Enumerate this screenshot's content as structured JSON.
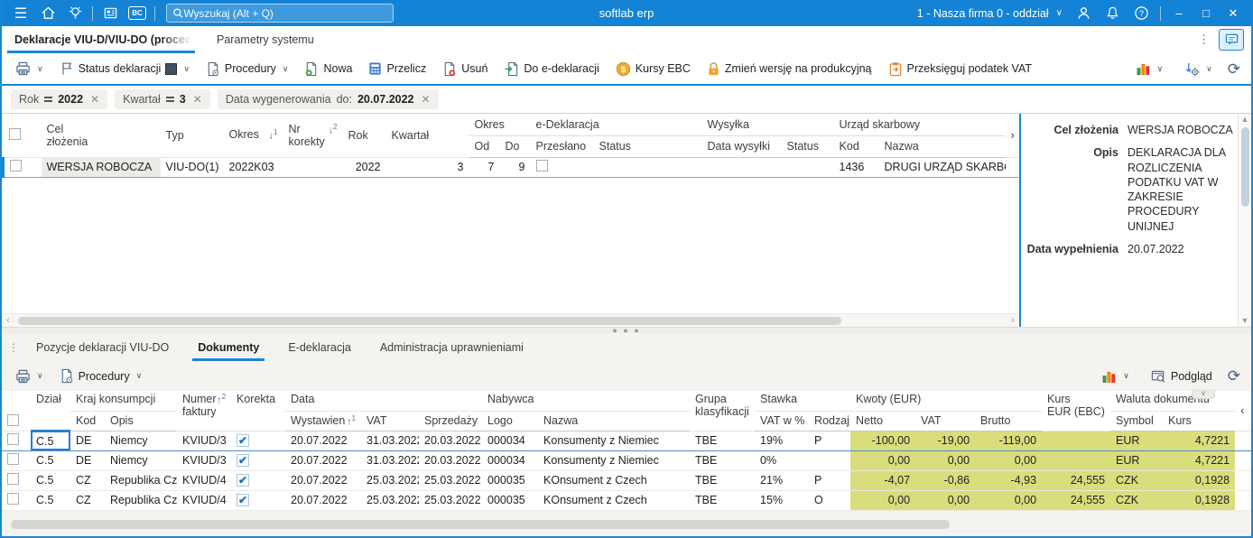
{
  "topbar": {
    "search_placeholder": "Wyszukaj (Alt + Q)",
    "app_title": "softlab erp",
    "company_selector": "1 - Nasza firma 0 - oddział",
    "bc_label": "BC"
  },
  "main_tabs": [
    {
      "label": "Deklaracje VIU-D/VIU-DO (procedura u",
      "active": true
    },
    {
      "label": "Parametry systemu",
      "active": false
    }
  ],
  "toolbar": {
    "status_deklaracji": "Status deklaracji",
    "procedury": "Procedury",
    "nowa": "Nowa",
    "przelicz": "Przelicz",
    "usun": "Usuń",
    "do_edeklaracji": "Do e-deklaracji",
    "kursy_ebc": "Kursy EBC",
    "zmien_wersje": "Zmień wersję na produkcyjną",
    "przeksieguj": "Przeksięguj podatek VAT"
  },
  "filters": [
    {
      "label": "Rok",
      "op": "=",
      "value": "2022"
    },
    {
      "label": "Kwartał",
      "op": "=",
      "value": "3"
    },
    {
      "label": "Data wygenerowania",
      "op": "do:",
      "value": "20.07.2022"
    }
  ],
  "upper_grid": {
    "headers": {
      "cel": "Cel",
      "zlozenia": "złożenia",
      "typ": "Typ",
      "okres": "Okres",
      "nr": "Nr",
      "korekty": "korekty",
      "rok": "Rok",
      "kwartal": "Kwartał",
      "okres_group": "Okres",
      "od": "Od",
      "do": "Do",
      "edeklaracja": "e-Deklaracja",
      "przeslano": "Przesłano",
      "status_e": "Status",
      "wysylka": "Wysyłka",
      "data_wysylki": "Data wysyłki",
      "status_w": "Status",
      "urzad": "Urząd skarbowy",
      "kod": "Kod",
      "nazwa": "Nazwa"
    },
    "row": {
      "cel": "WERSJA ROBOCZA",
      "typ": "VIU-DO(1)",
      "okres": "2022K03",
      "nr_korekty": "",
      "rok": "2022",
      "kwartal": "3",
      "od": "7",
      "do": "9",
      "przeslano": false,
      "status_e": "",
      "data_wysylki": "",
      "status_w": "",
      "kod": "1436",
      "nazwa": "DRUGI URZĄD SKARBOV"
    }
  },
  "detail_panel": {
    "fields": [
      {
        "label": "Cel złożenia",
        "value": "WERSJA ROBOCZA"
      },
      {
        "label": "Opis",
        "value": "DEKLARACJA DLA ROZLICZENIA PODATKU VAT W ZAKRESIE PROCEDURY UNIJNEJ"
      },
      {
        "label": "Data wypełnienia",
        "value": "20.07.2022"
      }
    ]
  },
  "lower_section": {
    "tabs": [
      {
        "label": "Pozycje deklaracji VIU-DO",
        "active": false
      },
      {
        "label": "Dokumenty",
        "active": true
      },
      {
        "label": "E-deklaracja",
        "active": false
      },
      {
        "label": "Administracja uprawnieniami",
        "active": false
      }
    ],
    "toolbar": {
      "procedury": "Procedury",
      "podglad": "Podgląd"
    }
  },
  "lower_grid": {
    "headers": {
      "dzial": "Dział",
      "kraj": "Kraj konsumpcji",
      "kod": "Kod",
      "opis": "Opis",
      "numer": "Numer",
      "faktury": "faktury",
      "korekta": "Korekta",
      "data": "Data",
      "wystawien": "Wystawien",
      "vat_d": "VAT",
      "sprzedazy": "Sprzedaży",
      "nabywca": "Nabywca",
      "logo": "Logo",
      "nazwa": "Nazwa",
      "grupa": "Grupa",
      "klasyfikacji": "klasyfikacji",
      "stawka": "Stawka",
      "vat_w": "VAT w %",
      "rodzaj": "Rodzaj",
      "kwoty": "Kwoty (EUR)",
      "netto": "Netto",
      "vat2": "VAT",
      "brutto": "Brutto",
      "kurs": "Kurs",
      "eur_ebc": "EUR (EBC)",
      "waluta": "Waluta dokumentu",
      "symbol": "Symbol",
      "kurs2": "Kurs"
    },
    "rows": [
      [
        "C.5",
        "DE",
        "Niemcy",
        "KVIUD/3",
        true,
        "20.07.2022",
        "31.03.2022",
        "20.03.2022",
        "000034",
        "Konsumenty z Niemiec",
        "TBE",
        "19%",
        "P",
        "-100,00",
        "-19,00",
        "-119,00",
        "",
        "EUR",
        "4,7221"
      ],
      [
        "C.5",
        "DE",
        "Niemcy",
        "KVIUD/3",
        true,
        "20.07.2022",
        "31.03.2022",
        "20.03.2022",
        "000034",
        "Konsumenty z Niemiec",
        "TBE",
        "0%",
        "",
        "0,00",
        "0,00",
        "0,00",
        "",
        "EUR",
        "4,7221"
      ],
      [
        "C.5",
        "CZ",
        "Republika Cz",
        "KVIUD/4",
        true,
        "20.07.2022",
        "25.03.2022",
        "25.03.2022",
        "000035",
        "KOnsument z Czech",
        "TBE",
        "21%",
        "P",
        "-4,07",
        "-0,86",
        "-4,93",
        "24,555",
        "CZK",
        "0,1928"
      ],
      [
        "C.5",
        "CZ",
        "Republika Cz",
        "KVIUD/4",
        true,
        "20.07.2022",
        "25.03.2022",
        "25.03.2022",
        "000035",
        "KOnsument z Czech",
        "TBE",
        "15%",
        "O",
        "0,00",
        "0,00",
        "0,00",
        "24,555",
        "CZK",
        "0,1928"
      ]
    ]
  },
  "colors": {
    "accent": "#1787d2",
    "topbar": "#1483d5",
    "highlight": "#d9dd7b"
  }
}
